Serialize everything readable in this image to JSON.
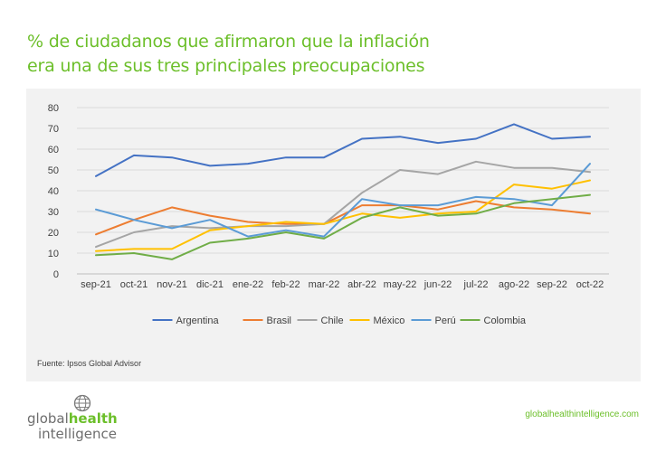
{
  "title": {
    "line1": "% de ciudadanos que afirmaron que la inflación",
    "line2": "era una de sus tres principales preocupaciones"
  },
  "source": "Fuente: Ipsos Global Advisor",
  "logo": {
    "part1": "global",
    "part2": "health",
    "part3": "intelligence"
  },
  "url": "globalhealthintelligence.com",
  "chart_data": {
    "type": "line",
    "categories": [
      "sep-21",
      "oct-21",
      "nov-21",
      "dic-21",
      "ene-22",
      "feb-22",
      "mar-22",
      "abr-22",
      "may-22",
      "jun-22",
      "jul-22",
      "ago-22",
      "sep-22",
      "oct-22"
    ],
    "ylim": [
      0,
      80
    ],
    "yticks": [
      0,
      10,
      20,
      30,
      40,
      50,
      60,
      70,
      80
    ],
    "grid": true,
    "legend": "bottom",
    "series": [
      {
        "name": "Argentina",
        "color": "#4472c4",
        "values": [
          47,
          57,
          56,
          52,
          53,
          56,
          56,
          65,
          66,
          63,
          65,
          72,
          65,
          66
        ]
      },
      {
        "name": "Brasil",
        "color": "#ed7d31",
        "values": [
          19,
          26,
          32,
          28,
          25,
          24,
          24,
          33,
          33,
          31,
          35,
          32,
          31,
          29
        ]
      },
      {
        "name": "Chile",
        "color": "#a5a5a5",
        "values": [
          13,
          20,
          23,
          22,
          23,
          23,
          24,
          39,
          50,
          48,
          54,
          51,
          51,
          49
        ]
      },
      {
        "name": "México",
        "color": "#ffc000",
        "values": [
          11,
          12,
          12,
          21,
          23,
          25,
          24,
          29,
          27,
          29,
          30,
          43,
          41,
          45
        ]
      },
      {
        "name": "Perú",
        "color": "#5b9bd5",
        "values": [
          31,
          26,
          22,
          26,
          18,
          21,
          18,
          36,
          33,
          33,
          37,
          36,
          33,
          53
        ]
      },
      {
        "name": "Colombia",
        "color": "#70ad47",
        "values": [
          9,
          10,
          7,
          15,
          17,
          20,
          17,
          27,
          32,
          28,
          29,
          34,
          36,
          38
        ]
      }
    ]
  }
}
